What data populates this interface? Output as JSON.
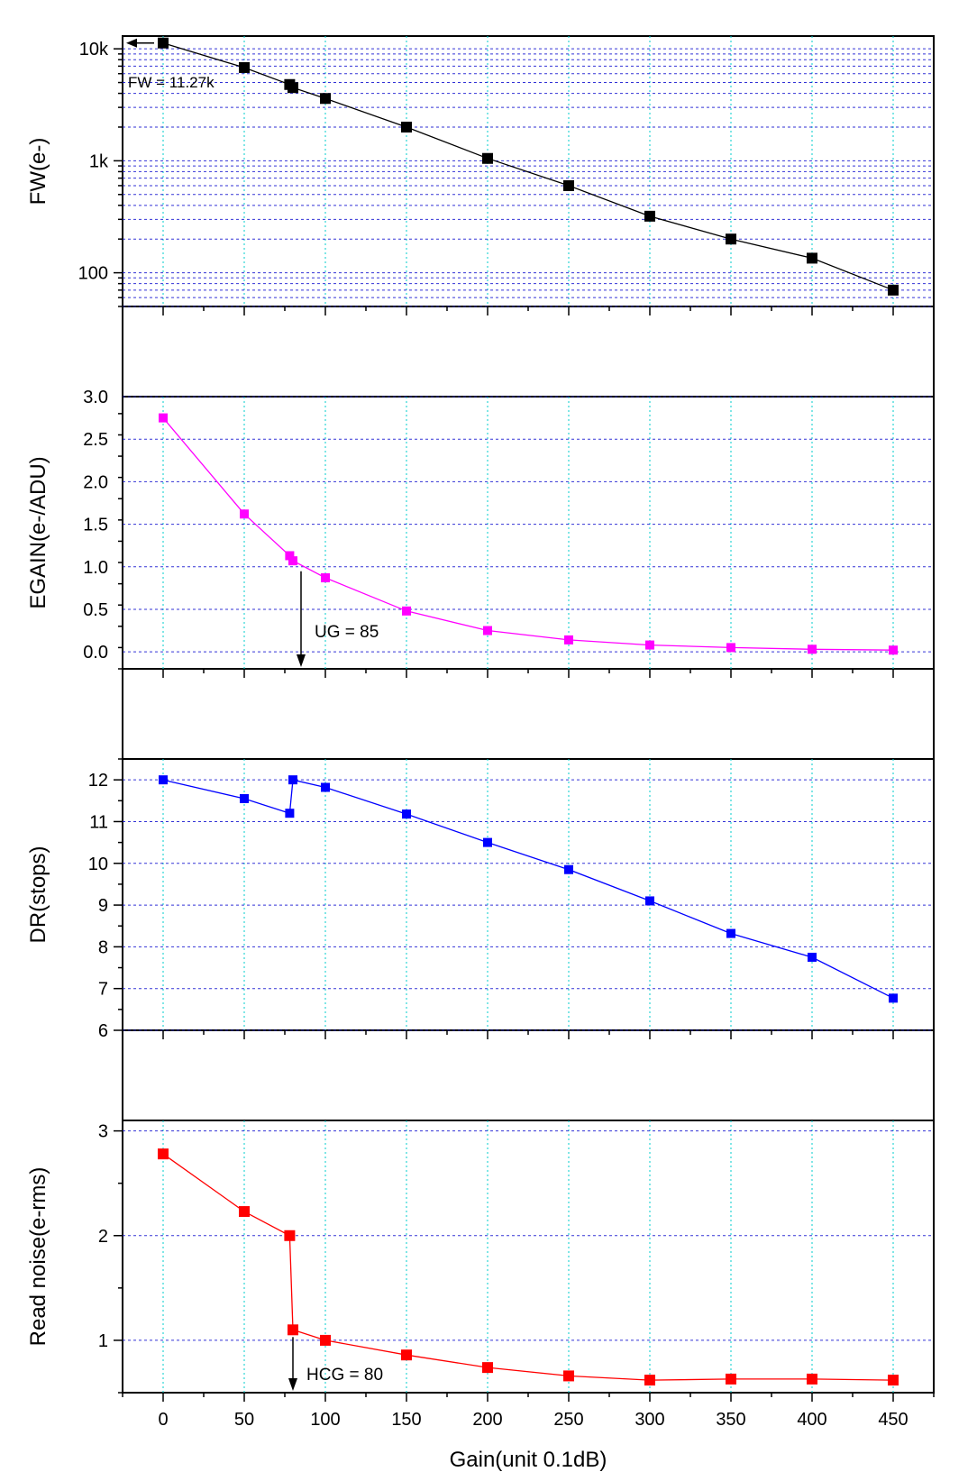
{
  "figure": {
    "xlabel": "Gain(unit 0.1dB)",
    "xticks": [
      0,
      50,
      100,
      150,
      200,
      250,
      300,
      350,
      400,
      450
    ],
    "xlim": [
      -25,
      475
    ]
  },
  "chart_data": [
    {
      "id": "fw",
      "type": "line",
      "scale": "log",
      "ylabel": "FW(e-)",
      "ylim": [
        50,
        13000
      ],
      "yticks": [
        100,
        1000,
        10000
      ],
      "ytick_labels": [
        "100",
        "1k",
        "10k"
      ],
      "color": "#000000",
      "x": [
        0,
        50,
        78,
        80,
        100,
        150,
        200,
        250,
        300,
        350,
        400,
        450
      ],
      "y": [
        11270,
        6800,
        4800,
        4500,
        3600,
        2000,
        1050,
        600,
        320,
        200,
        135,
        70
      ],
      "annotation": "FW = 11.27k"
    },
    {
      "id": "egain",
      "type": "line",
      "scale": "linear",
      "ylabel": "EGAIN(e-/ADU)",
      "ylim": [
        -0.2,
        3.0
      ],
      "yticks": [
        0.0,
        0.5,
        1.0,
        1.5,
        2.0,
        2.5,
        3.0
      ],
      "ytick_labels": [
        "0.0",
        "0.5",
        "1.0",
        "1.5",
        "2.0",
        "2.5",
        "3.0"
      ],
      "color": "#ff00ff",
      "x": [
        0,
        50,
        78,
        80,
        100,
        150,
        200,
        250,
        300,
        350,
        400,
        450
      ],
      "y": [
        2.75,
        1.62,
        1.13,
        1.07,
        0.87,
        0.48,
        0.25,
        0.14,
        0.08,
        0.05,
        0.03,
        0.02
      ],
      "annotation": "UG = 85"
    },
    {
      "id": "dr",
      "type": "line",
      "scale": "linear",
      "ylabel": "DR(stops)",
      "ylim": [
        6,
        12.5
      ],
      "yticks": [
        6,
        7,
        8,
        9,
        10,
        11,
        12
      ],
      "ytick_labels": [
        "6",
        "7",
        "8",
        "9",
        "10",
        "11",
        "12"
      ],
      "color": "#0000ff",
      "x": [
        0,
        50,
        78,
        80,
        100,
        150,
        200,
        250,
        300,
        350,
        400,
        450
      ],
      "y": [
        12.0,
        11.55,
        11.2,
        12.0,
        11.82,
        11.18,
        10.5,
        9.85,
        9.1,
        8.32,
        7.75,
        6.77
      ]
    },
    {
      "id": "rn",
      "type": "line",
      "scale": "linear",
      "ylabel": "Read noise(e-rms)",
      "ylim": [
        0.5,
        3.1
      ],
      "yticks": [
        1,
        2,
        3
      ],
      "ytick_labels": [
        "1",
        "2",
        "3"
      ],
      "color": "#ff0000",
      "x": [
        0,
        50,
        78,
        80,
        100,
        150,
        200,
        250,
        300,
        350,
        400,
        450
      ],
      "y": [
        2.78,
        2.23,
        2.0,
        1.1,
        1.0,
        0.86,
        0.74,
        0.66,
        0.62,
        0.63,
        0.63,
        0.62
      ],
      "annotation": "HCG = 80"
    }
  ]
}
